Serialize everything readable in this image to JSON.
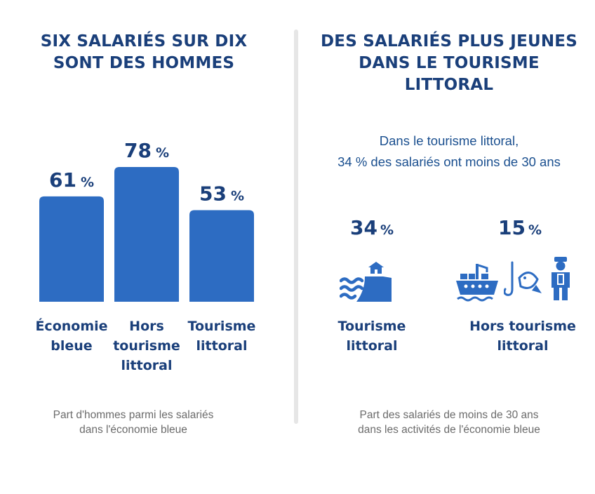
{
  "left": {
    "title_line1": "SIX SALARIÉS SUR DIX",
    "title_line2": "SONT DES HOMMES",
    "unit": "%",
    "bar_labels": [
      [
        "Économie",
        "bleue",
        ""
      ],
      [
        "Hors",
        "tourisme",
        "littoral"
      ],
      [
        "Tourisme",
        "littoral",
        ""
      ]
    ],
    "caption_line1": "Part d'hommes parmi les salariés",
    "caption_line2": "dans l'économie bleue"
  },
  "right": {
    "title_line1": "DES SALARIÉS PLUS JEUNES",
    "title_line2": "DANS LE TOURISME",
    "title_line3": "LITTORAL",
    "intro_line1": "Dans le tourisme littoral,",
    "intro_line2": "34 % des salariés ont moins de 30 ans",
    "unit": "%",
    "groups": [
      {
        "value": 34,
        "label_line1": "Tourisme",
        "label_line2": "littoral",
        "icons": [
          "coastal-house-waves-icon"
        ]
      },
      {
        "value": 15,
        "label_line1": "Hors tourisme",
        "label_line2": "littoral",
        "icons": [
          "cargo-ship-icon",
          "fishing-hook-fish-icon",
          "sailor-icon"
        ]
      }
    ],
    "caption_line1": "Part des salariés de moins de 30 ans",
    "caption_line2": "dans les activités de l'économie bleue"
  },
  "colors": {
    "bar": "#2d6cc2",
    "title": "#1a3f7a",
    "icon": "#2d6cc2",
    "divider": "#e6e6e6"
  },
  "chart_data": [
    {
      "type": "bar",
      "title": "SIX SALARIÉS SUR DIX SONT DES HOMMES",
      "categories": [
        "Économie bleue",
        "Hors tourisme littoral",
        "Tourisme littoral"
      ],
      "values": [
        61,
        78,
        53
      ],
      "unit": "%",
      "ylim": [
        0,
        78
      ],
      "grid": false,
      "caption": "Part d'hommes parmi les salariés dans l'économie bleue"
    },
    {
      "type": "table",
      "title": "DES SALARIÉS PLUS JEUNES DANS LE TOURISME LITTORAL",
      "categories": [
        "Tourisme littoral",
        "Hors tourisme littoral"
      ],
      "values": [
        34,
        15
      ],
      "unit": "%",
      "caption": "Part des salariés de moins de 30 ans dans les activités de l'économie bleue"
    }
  ]
}
